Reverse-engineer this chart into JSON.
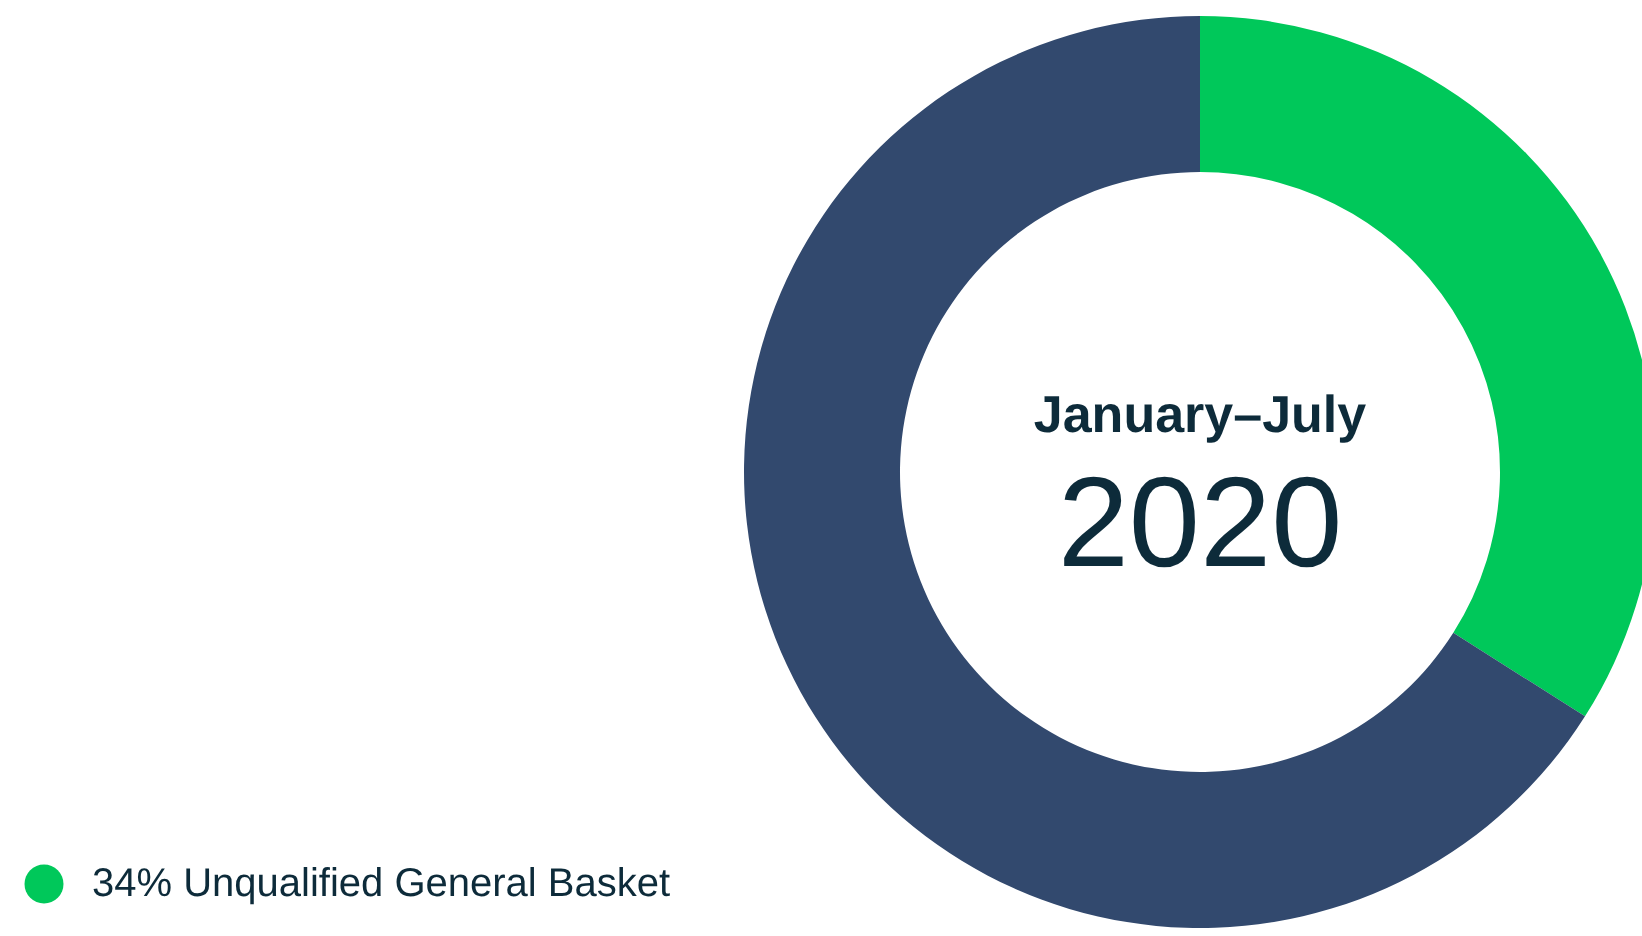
{
  "chart_data": {
    "type": "donut",
    "title": "January–July",
    "subtitle": "2020",
    "categories": [
      "Unqualified General Basket",
      null
    ],
    "values": [
      34,
      66
    ],
    "colors": [
      "#00c85a",
      "#32496e"
    ],
    "value_labels": [
      "34%",
      null
    ],
    "legend": "bottom left"
  }
}
